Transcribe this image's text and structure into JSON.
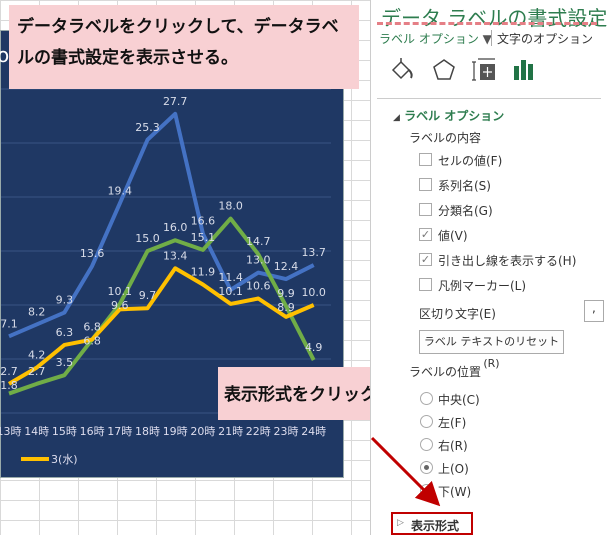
{
  "callouts": {
    "top": "データラベルをクリックして、データラベルの書式設定を表示させる。",
    "bottom": "表示形式をクリック"
  },
  "chart_title_fragment": "o",
  "chart_data": {
    "type": "line",
    "categories": [
      "13時",
      "14時",
      "15時",
      "16時",
      "17時",
      "18時",
      "19時",
      "20時",
      "21時",
      "22時",
      "23時",
      "24時"
    ],
    "ylim": [
      0,
      30
    ],
    "grid": true,
    "series": [
      {
        "name": "",
        "color": "#4472c4",
        "values": [
          7.1,
          8.2,
          9.3,
          13.6,
          19.4,
          25.3,
          27.7,
          16.6,
          11.4,
          13.0,
          12.4,
          13.7
        ]
      },
      {
        "name": "",
        "color": "#70ad47",
        "values": [
          1.8,
          2.7,
          3.5,
          6.8,
          10.1,
          15.0,
          16.0,
          15.1,
          18.0,
          14.7,
          9.9,
          4.9
        ]
      },
      {
        "name": "3(水)",
        "color": "#ffc000",
        "values": [
          2.7,
          4.2,
          6.3,
          6.8,
          9.6,
          9.7,
          13.4,
          11.9,
          10.1,
          10.6,
          8.9,
          10.0
        ]
      }
    ],
    "legend": "bottom"
  },
  "panel": {
    "title": "データ ラベルの書式設定",
    "tab_label_options": "ラベル オプション",
    "tab_text_options": "文字のオプション",
    "section": "ラベル オプション",
    "label_contents": "ラベルの内容",
    "checkboxes": [
      {
        "label": "セルの値(F)",
        "checked": false
      },
      {
        "label": "系列名(S)",
        "checked": false
      },
      {
        "label": "分類名(G)",
        "checked": false
      },
      {
        "label": "値(V)",
        "checked": true
      },
      {
        "label": "引き出し線を表示する(H)",
        "checked": true
      },
      {
        "label": "凡例マーカー(L)",
        "checked": false
      }
    ],
    "separator_label": "区切り文字(E)",
    "separator_value": ",",
    "reset_button": "ラベル テキストのリセット(R)",
    "position_label": "ラベルの位置",
    "radios": [
      {
        "label": "中央(C)",
        "selected": false
      },
      {
        "label": "左(F)",
        "selected": false
      },
      {
        "label": "右(R)",
        "selected": false
      },
      {
        "label": "上(O)",
        "selected": true
      },
      {
        "label": "下(W)",
        "selected": false
      }
    ],
    "number_format": "表示形式"
  }
}
